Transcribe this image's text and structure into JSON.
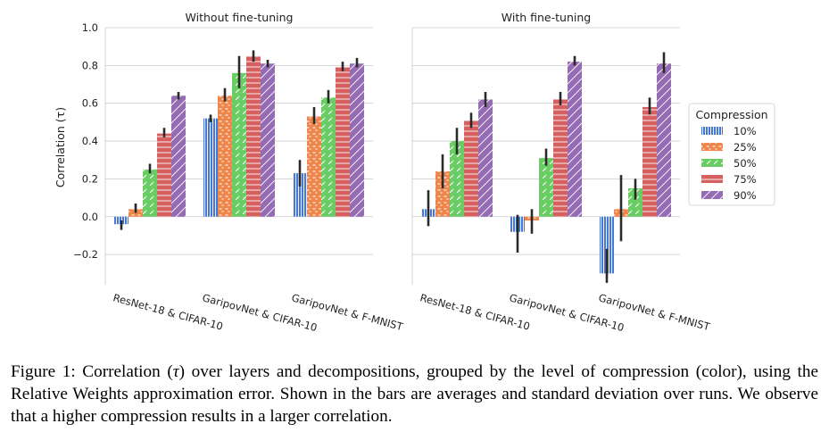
{
  "chart_data": {
    "type": "bar",
    "ylabel": "Correlation (τ)",
    "ylim": [
      -0.36,
      1.0
    ],
    "yticks": [
      -0.2,
      0.0,
      0.2,
      0.4,
      0.6,
      0.8,
      1.0
    ],
    "ytick_labels": [
      "−0.2",
      "0.0",
      "0.2",
      "0.4",
      "0.6",
      "0.8",
      "1.0"
    ],
    "grid": true,
    "categories": [
      "ResNet-18 & CIFAR-10",
      "GaripovNet & CIFAR-10",
      "GaripovNet & F-MNIST"
    ],
    "legend": {
      "title": "Compression",
      "placement": "right",
      "entries": [
        "10%",
        "25%",
        "50%",
        "75%",
        "90%"
      ]
    },
    "series_colors": [
      "#4878d0",
      "#ee854a",
      "#6acc64",
      "#d65f5f",
      "#956cb4"
    ],
    "series_hatches": [
      "vertical",
      "dash",
      "diagonal-dash",
      "horizontal",
      "diagonal"
    ],
    "panels": [
      {
        "title": "Without fine-tuning",
        "series": [
          {
            "name": "10%",
            "values": [
              -0.04,
              0.52,
              0.23
            ],
            "err_low": [
              -0.07,
              0.5,
              0.16
            ],
            "err_high": [
              -0.02,
              0.54,
              0.3
            ]
          },
          {
            "name": "25%",
            "values": [
              0.04,
              0.64,
              0.53
            ],
            "err_low": [
              0.02,
              0.61,
              0.49
            ],
            "err_high": [
              0.07,
              0.68,
              0.58
            ]
          },
          {
            "name": "50%",
            "values": [
              0.25,
              0.76,
              0.63
            ],
            "err_low": [
              0.23,
              0.68,
              0.6
            ],
            "err_high": [
              0.28,
              0.85,
              0.67
            ]
          },
          {
            "name": "75%",
            "values": [
              0.44,
              0.85,
              0.79
            ],
            "err_low": [
              0.42,
              0.82,
              0.77
            ],
            "err_high": [
              0.47,
              0.88,
              0.82
            ]
          },
          {
            "name": "90%",
            "values": [
              0.64,
              0.81,
              0.81
            ],
            "err_low": [
              0.62,
              0.79,
              0.79
            ],
            "err_high": [
              0.66,
              0.83,
              0.84
            ]
          }
        ]
      },
      {
        "title": "With fine-tuning",
        "series": [
          {
            "name": "10%",
            "values": [
              0.04,
              -0.08,
              -0.3
            ],
            "err_low": [
              -0.05,
              -0.19,
              -0.35
            ],
            "err_high": [
              0.14,
              0.01,
              -0.17
            ]
          },
          {
            "name": "25%",
            "values": [
              0.24,
              -0.02,
              0.04
            ],
            "err_low": [
              0.15,
              -0.09,
              -0.13
            ],
            "err_high": [
              0.33,
              0.04,
              0.22
            ]
          },
          {
            "name": "50%",
            "values": [
              0.4,
              0.31,
              0.15
            ],
            "err_low": [
              0.33,
              0.27,
              0.09
            ],
            "err_high": [
              0.47,
              0.36,
              0.2
            ]
          },
          {
            "name": "75%",
            "values": [
              0.51,
              0.62,
              0.58
            ],
            "err_low": [
              0.47,
              0.59,
              0.54
            ],
            "err_high": [
              0.55,
              0.66,
              0.63
            ]
          },
          {
            "name": "90%",
            "values": [
              0.62,
              0.82,
              0.81
            ],
            "err_low": [
              0.58,
              0.8,
              0.76
            ],
            "err_high": [
              0.66,
              0.85,
              0.87
            ]
          }
        ]
      }
    ]
  },
  "caption": {
    "prefix": "Figure 1: Correlation (",
    "symbol": "τ",
    "suffix": ") over layers and decompositions, grouped by the level of compression (color), using the Relative Weights approximation error. Shown in the bars are averages and standard deviation over runs. We observe that a higher compression results in a larger correlation."
  }
}
